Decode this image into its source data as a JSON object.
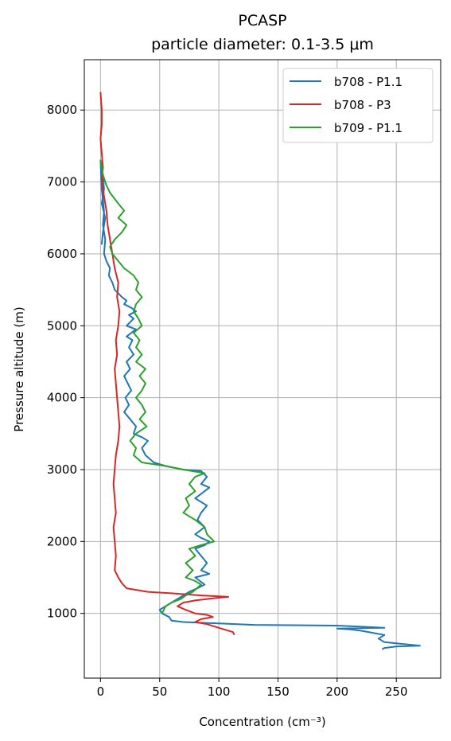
{
  "chart_data": {
    "type": "line",
    "title": "PCASP",
    "subtitle": "particle diameter: 0.1-3.5 μm",
    "xlabel": "Concentration (cm⁻³)",
    "ylabel": "Pressure altitude (m)",
    "xlim": [
      -13.7,
      287.5
    ],
    "ylim": [
      100,
      8700
    ],
    "xticks": [
      0,
      50,
      100,
      150,
      200,
      250
    ],
    "yticks": [
      1000,
      2000,
      3000,
      4000,
      5000,
      6000,
      7000,
      8000
    ],
    "grid": true,
    "legend_position": "top-right",
    "series": [
      {
        "name": "b708 - P1.1",
        "color": "#1f77b4",
        "points": [
          [
            1,
            6130
          ],
          [
            2,
            6300
          ],
          [
            4,
            6500
          ],
          [
            1,
            6700
          ],
          [
            3,
            6900
          ],
          [
            2,
            7100
          ],
          [
            0,
            7300
          ],
          [
            1,
            6900
          ],
          [
            3,
            6600
          ],
          [
            2,
            6400
          ],
          [
            4,
            6200
          ],
          [
            3,
            6000
          ],
          [
            5,
            5900
          ],
          [
            8,
            5800
          ],
          [
            7,
            5700
          ],
          [
            10,
            5600
          ],
          [
            12,
            5500
          ],
          [
            15,
            5450
          ],
          [
            18,
            5400
          ],
          [
            22,
            5350
          ],
          [
            20,
            5300
          ],
          [
            26,
            5250
          ],
          [
            30,
            5200
          ],
          [
            24,
            5150
          ],
          [
            28,
            5100
          ],
          [
            25,
            5050
          ],
          [
            22,
            5000
          ],
          [
            30,
            4950
          ],
          [
            26,
            4900
          ],
          [
            22,
            4850
          ],
          [
            27,
            4800
          ],
          [
            24,
            4700
          ],
          [
            28,
            4600
          ],
          [
            22,
            4500
          ],
          [
            25,
            4400
          ],
          [
            20,
            4300
          ],
          [
            23,
            4200
          ],
          [
            26,
            4100
          ],
          [
            21,
            4000
          ],
          [
            24,
            3900
          ],
          [
            20,
            3800
          ],
          [
            25,
            3700
          ],
          [
            30,
            3600
          ],
          [
            28,
            3500
          ],
          [
            35,
            3450
          ],
          [
            40,
            3400
          ],
          [
            35,
            3300
          ],
          [
            38,
            3200
          ],
          [
            45,
            3100
          ],
          [
            55,
            3050
          ],
          [
            70,
            3000
          ],
          [
            85,
            2980
          ],
          [
            90,
            2900
          ],
          [
            85,
            2800
          ],
          [
            92,
            2750
          ],
          [
            88,
            2700
          ],
          [
            80,
            2600
          ],
          [
            90,
            2500
          ],
          [
            85,
            2400
          ],
          [
            82,
            2300
          ],
          [
            88,
            2200
          ],
          [
            80,
            2100
          ],
          [
            85,
            2050
          ],
          [
            92,
            2000
          ],
          [
            88,
            1950
          ],
          [
            80,
            1900
          ],
          [
            85,
            1800
          ],
          [
            90,
            1700
          ],
          [
            85,
            1600
          ],
          [
            92,
            1550
          ],
          [
            80,
            1500
          ],
          [
            88,
            1400
          ],
          [
            82,
            1350
          ],
          [
            75,
            1300
          ],
          [
            70,
            1250
          ],
          [
            65,
            1200
          ],
          [
            60,
            1150
          ],
          [
            55,
            1100
          ],
          [
            50,
            1050
          ],
          [
            52,
            1000
          ],
          [
            58,
            950
          ],
          [
            60,
            900
          ],
          [
            70,
            880
          ],
          [
            100,
            860
          ],
          [
            130,
            840
          ],
          [
            200,
            830
          ],
          [
            240,
            800
          ],
          [
            200,
            790
          ],
          [
            210,
            780
          ],
          [
            220,
            760
          ],
          [
            240,
            700
          ],
          [
            235,
            650
          ],
          [
            240,
            600
          ],
          [
            270,
            550
          ],
          [
            250,
            540
          ],
          [
            240,
            520
          ],
          [
            238,
            500
          ]
        ]
      },
      {
        "name": "b708 - P3",
        "color": "#d62728",
        "points": [
          [
            0,
            8250
          ],
          [
            1,
            8000
          ],
          [
            1,
            7800
          ],
          [
            0,
            7600
          ],
          [
            1,
            7400
          ],
          [
            2,
            7200
          ],
          [
            1,
            7000
          ],
          [
            3,
            6800
          ],
          [
            5,
            6600
          ],
          [
            6,
            6400
          ],
          [
            8,
            6200
          ],
          [
            10,
            6000
          ],
          [
            12,
            5800
          ],
          [
            15,
            5600
          ],
          [
            14,
            5400
          ],
          [
            16,
            5200
          ],
          [
            15,
            5000
          ],
          [
            13,
            4800
          ],
          [
            14,
            4600
          ],
          [
            12,
            4400
          ],
          [
            13,
            4200
          ],
          [
            14,
            4000
          ],
          [
            15,
            3800
          ],
          [
            16,
            3600
          ],
          [
            15,
            3400
          ],
          [
            13,
            3200
          ],
          [
            12,
            3000
          ],
          [
            11,
            2800
          ],
          [
            12,
            2600
          ],
          [
            13,
            2400
          ],
          [
            11,
            2200
          ],
          [
            12,
            2000
          ],
          [
            13,
            1800
          ],
          [
            12,
            1600
          ],
          [
            15,
            1500
          ],
          [
            18,
            1420
          ],
          [
            22,
            1350
          ],
          [
            40,
            1300
          ],
          [
            60,
            1280
          ],
          [
            85,
            1250
          ],
          [
            108,
            1230
          ],
          [
            95,
            1210
          ],
          [
            80,
            1180
          ],
          [
            70,
            1150
          ],
          [
            65,
            1100
          ],
          [
            72,
            1050
          ],
          [
            80,
            1000
          ],
          [
            90,
            980
          ],
          [
            95,
            950
          ],
          [
            85,
            920
          ],
          [
            80,
            880
          ],
          [
            90,
            850
          ],
          [
            100,
            800
          ],
          [
            112,
            740
          ],
          [
            113,
            700
          ]
        ]
      },
      {
        "name": "b709 - P1.1",
        "color": "#2ca02c",
        "points": [
          [
            0,
            7300
          ],
          [
            2,
            7100
          ],
          [
            5,
            6950
          ],
          [
            8,
            6850
          ],
          [
            15,
            6700
          ],
          [
            20,
            6600
          ],
          [
            15,
            6500
          ],
          [
            22,
            6400
          ],
          [
            18,
            6300
          ],
          [
            12,
            6200
          ],
          [
            8,
            6100
          ],
          [
            10,
            6000
          ],
          [
            15,
            5900
          ],
          [
            20,
            5800
          ],
          [
            28,
            5700
          ],
          [
            32,
            5600
          ],
          [
            30,
            5500
          ],
          [
            35,
            5400
          ],
          [
            30,
            5300
          ],
          [
            28,
            5200
          ],
          [
            32,
            5100
          ],
          [
            35,
            5000
          ],
          [
            28,
            4900
          ],
          [
            33,
            4800
          ],
          [
            30,
            4700
          ],
          [
            35,
            4600
          ],
          [
            30,
            4500
          ],
          [
            38,
            4400
          ],
          [
            33,
            4300
          ],
          [
            38,
            4200
          ],
          [
            35,
            4100
          ],
          [
            30,
            4000
          ],
          [
            35,
            3900
          ],
          [
            38,
            3800
          ],
          [
            33,
            3700
          ],
          [
            39,
            3600
          ],
          [
            30,
            3500
          ],
          [
            25,
            3400
          ],
          [
            30,
            3300
          ],
          [
            28,
            3200
          ],
          [
            35,
            3100
          ],
          [
            55,
            3050
          ],
          [
            70,
            3000
          ],
          [
            88,
            2950
          ],
          [
            80,
            2900
          ],
          [
            75,
            2800
          ],
          [
            80,
            2700
          ],
          [
            72,
            2600
          ],
          [
            75,
            2500
          ],
          [
            70,
            2400
          ],
          [
            80,
            2300
          ],
          [
            88,
            2200
          ],
          [
            90,
            2100
          ],
          [
            96,
            2000
          ],
          [
            85,
            1950
          ],
          [
            75,
            1900
          ],
          [
            80,
            1800
          ],
          [
            72,
            1700
          ],
          [
            78,
            1600
          ],
          [
            72,
            1500
          ],
          [
            80,
            1450
          ],
          [
            85,
            1400
          ],
          [
            78,
            1300
          ],
          [
            72,
            1250
          ],
          [
            68,
            1200
          ],
          [
            60,
            1150
          ],
          [
            55,
            1100
          ],
          [
            52,
            1000
          ]
        ]
      }
    ]
  }
}
